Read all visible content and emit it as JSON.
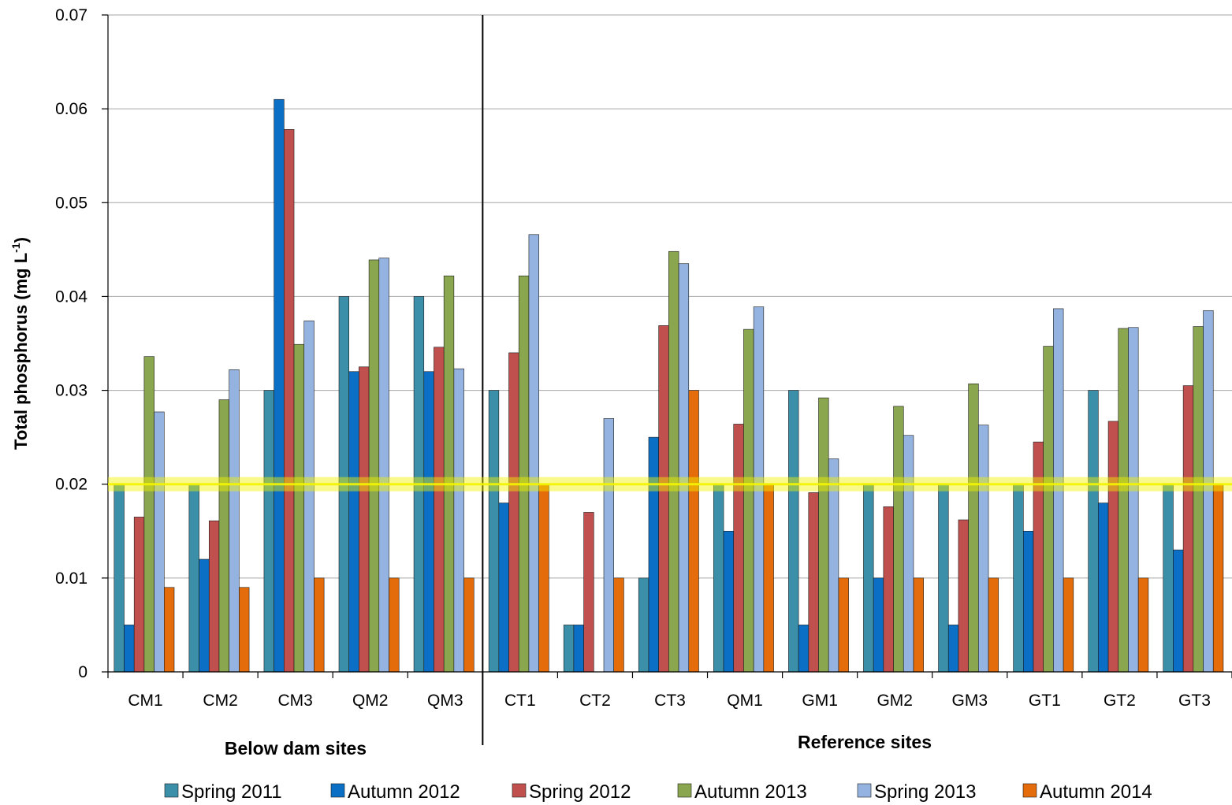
{
  "chart_data": {
    "type": "bar",
    "title": "",
    "ylabel": "Total phosphorus (mg L",
    "ylabel_superscript": "-1",
    "ylabel_close": ")",
    "xlabel": "",
    "ylim": [
      0,
      0.07
    ],
    "yticks": [
      "0",
      "0.01",
      "0.02",
      "0.03",
      "0.04",
      "0.05",
      "0.06",
      "0.07"
    ],
    "grid": true,
    "legend_position": "bottom",
    "categories": [
      "CM1",
      "CM2",
      "CM3",
      "QM2",
      "QM3",
      "CT1",
      "CT2",
      "CT3",
      "QM1",
      "GM1",
      "GM2",
      "GM3",
      "GT1",
      "GT2",
      "GT3"
    ],
    "groups": [
      {
        "label": "Below dam sites",
        "categories": [
          "CM1",
          "CM2",
          "CM3",
          "QM2",
          "QM3"
        ]
      },
      {
        "label": "Reference sites",
        "categories": [
          "CT1",
          "CT2",
          "CT3",
          "QM1",
          "GM1",
          "GM2",
          "GM3",
          "GT1",
          "GT2",
          "GT3"
        ]
      }
    ],
    "reference_line": {
      "value": 0.02,
      "color": "#f5f500"
    },
    "series": [
      {
        "name": "Spring 2011",
        "color": "#3b8fa8",
        "values": [
          0.02,
          0.02,
          0.03,
          0.04,
          0.04,
          0.03,
          0.005,
          0.01,
          0.02,
          0.03,
          0.02,
          0.02,
          0.02,
          0.03,
          0.02
        ]
      },
      {
        "name": "Autumn 2012",
        "color": "#0b6fc6",
        "values": [
          0.005,
          0.012,
          0.061,
          0.032,
          0.032,
          0.018,
          0.005,
          0.025,
          0.015,
          0.005,
          0.01,
          0.005,
          0.015,
          0.018,
          0.013
        ]
      },
      {
        "name": "Spring 2012",
        "color": "#c0504d",
        "values": [
          0.0165,
          0.0161,
          0.0578,
          0.0325,
          0.0346,
          0.034,
          0.017,
          0.0369,
          0.0264,
          0.0191,
          0.0176,
          0.0162,
          0.0245,
          0.0267,
          0.0305
        ]
      },
      {
        "name": "Autumn 2013",
        "color": "#8aa64e",
        "values": [
          0.0336,
          0.029,
          0.0349,
          0.0439,
          0.0422,
          0.0422,
          null,
          0.0448,
          0.0365,
          0.0292,
          0.0283,
          0.0307,
          0.0347,
          0.0366,
          0.0368
        ]
      },
      {
        "name": "Spring 2013",
        "color": "#94b3e0",
        "values": [
          0.0277,
          0.0322,
          0.0374,
          0.0441,
          0.0323,
          0.0466,
          0.027,
          0.0435,
          0.0389,
          0.0227,
          0.0252,
          0.0263,
          0.0387,
          0.0367,
          0.0385
        ]
      },
      {
        "name": "Autumn 2014",
        "color": "#e46c0a",
        "values": [
          0.009,
          0.009,
          0.01,
          0.01,
          0.01,
          0.02,
          0.01,
          0.03,
          0.02,
          0.01,
          0.01,
          0.01,
          0.01,
          0.01,
          0.02
        ]
      }
    ]
  }
}
